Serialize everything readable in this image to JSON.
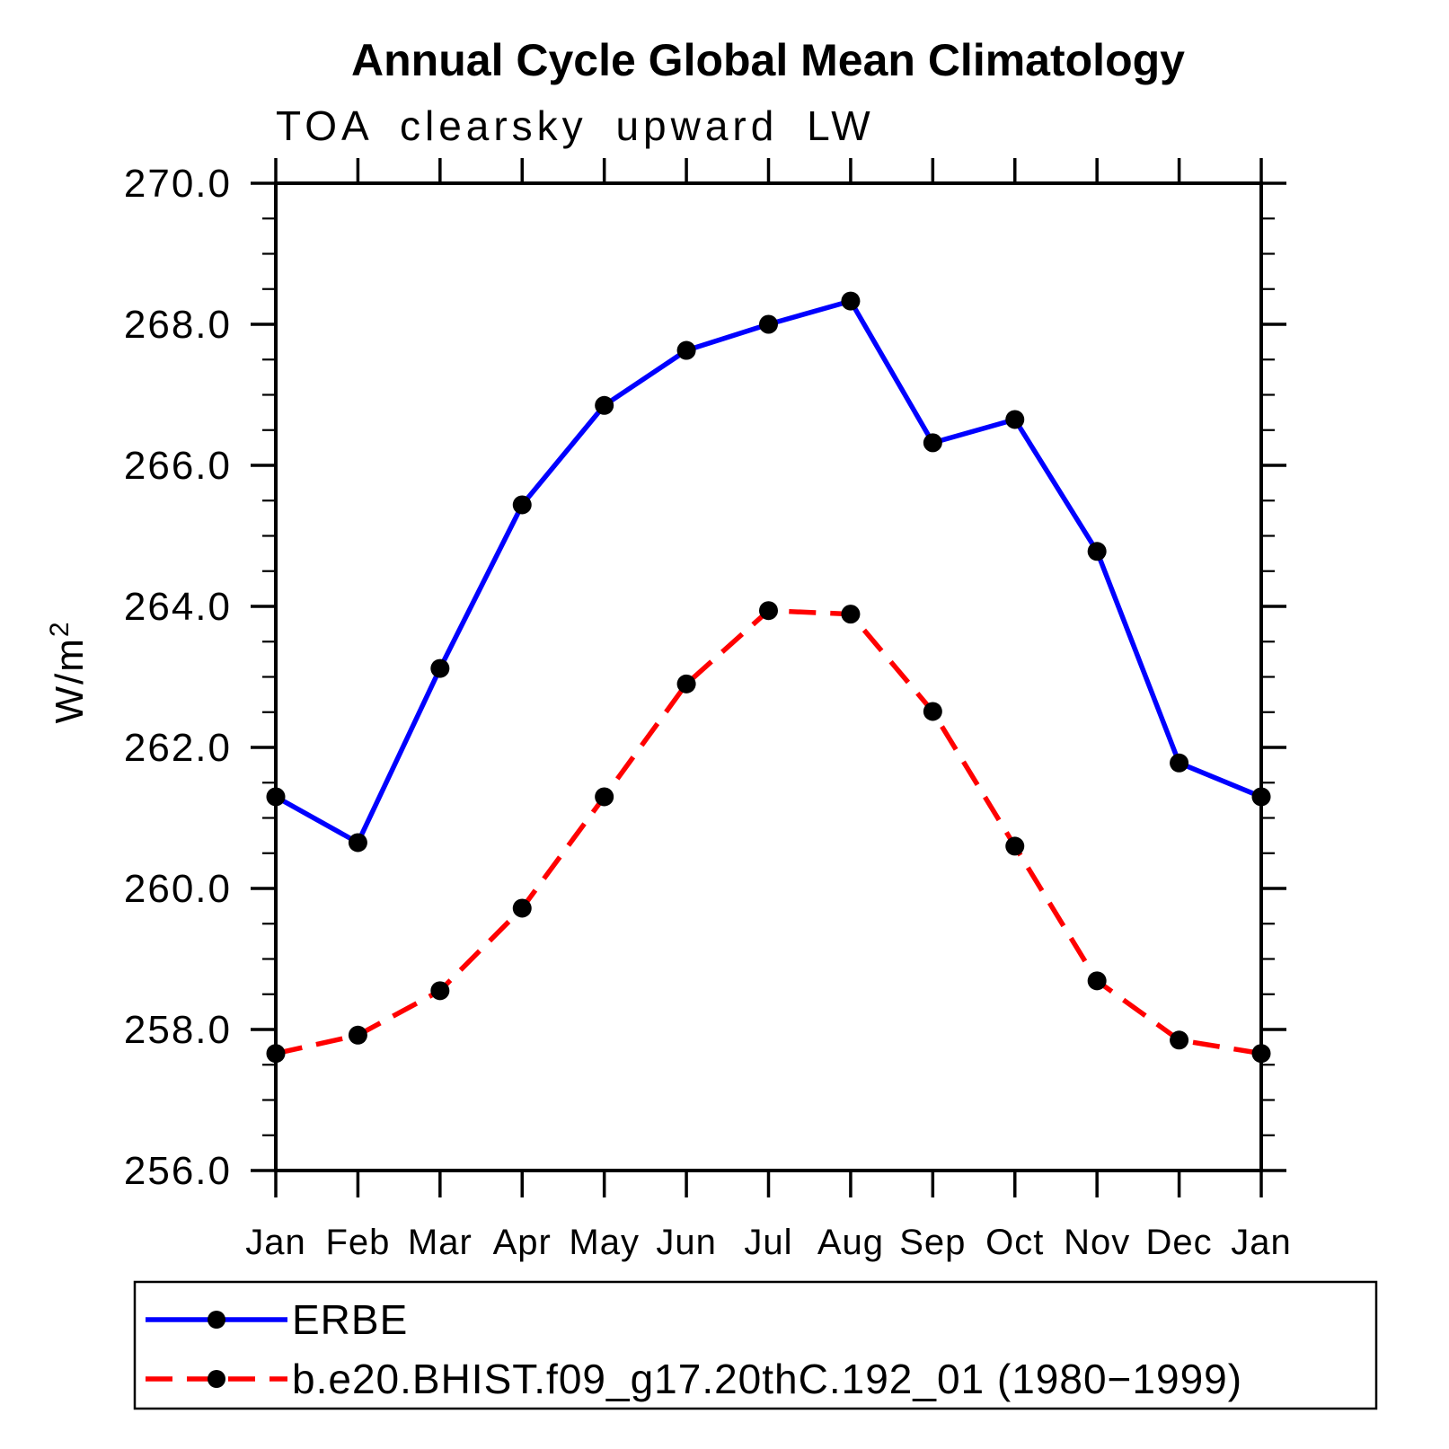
{
  "page": {
    "background": "#ffffff",
    "frame_color": "#000000"
  },
  "chart_data": {
    "type": "line",
    "title": "Annual Cycle Global Mean Climatology",
    "subtitle": "TOA clearsky upward LW",
    "ylabel": "W/m²",
    "ylabel_base": "W/m",
    "ylabel_exp": "2",
    "categories": [
      "Jan",
      "Feb",
      "Mar",
      "Apr",
      "May",
      "Jun",
      "Jul",
      "Aug",
      "Sep",
      "Oct",
      "Nov",
      "Dec",
      "Jan"
    ],
    "ylim": [
      256.0,
      270.0
    ],
    "ytick_major_step": 2.0,
    "ytick_minor_step": 0.5,
    "ytick_labels": [
      "256.0",
      "258.0",
      "260.0",
      "262.0",
      "264.0",
      "266.0",
      "268.0",
      "270.0"
    ],
    "grid": false,
    "legend_position": "bottom-left",
    "series": [
      {
        "name": "ERBE",
        "color": "#0000ff",
        "line_style": "solid",
        "marker": "circle",
        "marker_color": "#000000",
        "values": [
          261.3,
          260.65,
          263.12,
          265.44,
          266.85,
          267.63,
          268.0,
          268.33,
          266.32,
          266.65,
          264.78,
          261.78,
          261.3
        ]
      },
      {
        "name": "b.e20.BHIST.f09_g17.20thC.192_01 (1980−1999)",
        "color": "#ff0000",
        "line_style": "dashed",
        "marker": "circle",
        "marker_color": "#000000",
        "values": [
          257.66,
          257.92,
          258.55,
          259.72,
          261.3,
          262.9,
          263.94,
          263.89,
          262.51,
          260.6,
          258.69,
          257.85,
          257.66
        ]
      }
    ]
  }
}
